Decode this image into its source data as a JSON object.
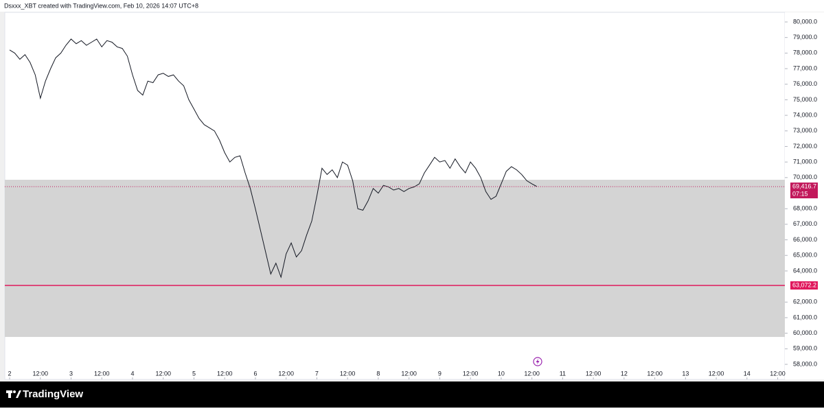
{
  "header": "Dsxxx_XBT created with TradingView.com, Feb 10, 2026 14:07 UTC+8",
  "footer": {
    "brand": "TradingView"
  },
  "chart_data": {
    "type": "line",
    "color": "#131722",
    "grid": false,
    "values": [
      78200,
      78000,
      77600,
      77900,
      77400,
      76600,
      75100,
      76200,
      77000,
      77700,
      78000,
      78500,
      78900,
      78600,
      78800,
      78500,
      78700,
      78900,
      78400,
      78800,
      78700,
      78400,
      78300,
      77800,
      76600,
      75600,
      75300,
      76200,
      76100,
      76600,
      76700,
      76500,
      76600,
      76200,
      75900,
      75000,
      74400,
      73800,
      73400,
      73200,
      73000,
      72400,
      71600,
      71000,
      71300,
      71400,
      70300,
      69300,
      68000,
      66600,
      65200,
      63800,
      64500,
      63600,
      65100,
      65800,
      64900,
      65300,
      66300,
      67200,
      68800,
      70600,
      70200,
      70500,
      70000,
      71000,
      70800,
      69800,
      68000,
      67900,
      68500,
      69300,
      69000,
      69500,
      69400,
      69200,
      69300,
      69100,
      69300,
      69400,
      69600,
      70300,
      70800,
      71300,
      71000,
      71100,
      70600,
      71200,
      70700,
      70300,
      71000,
      70600,
      70000,
      69100,
      68600,
      68800,
      69600,
      70400,
      70700,
      70500,
      70200,
      69800,
      69600,
      69416.7
    ],
    "xlim": [
      -0.94,
      151.4
    ],
    "xticks": [
      {
        "value": 0,
        "label": "2"
      },
      {
        "value": 6,
        "label": "12:00"
      },
      {
        "value": 12,
        "label": "3"
      },
      {
        "value": 18,
        "label": "12:00"
      },
      {
        "value": 24,
        "label": "4"
      },
      {
        "value": 30,
        "label": "12:00"
      },
      {
        "value": 36,
        "label": "5"
      },
      {
        "value": 42,
        "label": "12:00"
      },
      {
        "value": 48,
        "label": "6"
      },
      {
        "value": 54,
        "label": "12:00"
      },
      {
        "value": 60,
        "label": "7"
      },
      {
        "value": 66,
        "label": "12:00"
      },
      {
        "value": 72,
        "label": "8"
      },
      {
        "value": 78,
        "label": "12:00"
      },
      {
        "value": 84,
        "label": "9"
      },
      {
        "value": 90,
        "label": "12:00"
      },
      {
        "value": 96,
        "label": "10"
      },
      {
        "value": 102,
        "label": "12:00"
      },
      {
        "value": 108,
        "label": "11"
      },
      {
        "value": 114,
        "label": "12:00"
      },
      {
        "value": 120,
        "label": "12"
      },
      {
        "value": 126,
        "label": "12:00"
      },
      {
        "value": 132,
        "label": "13"
      },
      {
        "value": 138,
        "label": "12:00"
      },
      {
        "value": 144,
        "label": "14"
      },
      {
        "value": 150,
        "label": "12:00"
      }
    ],
    "ylim": [
      57030,
      80617
    ],
    "yticks": [
      {
        "value": 80000,
        "label": "80,000.0"
      },
      {
        "value": 79000,
        "label": "79,000.0"
      },
      {
        "value": 78000,
        "label": "78,000.0"
      },
      {
        "value": 77000,
        "label": "77,000.0"
      },
      {
        "value": 76000,
        "label": "76,000.0"
      },
      {
        "value": 75000,
        "label": "75,000.0"
      },
      {
        "value": 74000,
        "label": "74,000.0"
      },
      {
        "value": 73000,
        "label": "73,000.0"
      },
      {
        "value": 72000,
        "label": "72,000.0"
      },
      {
        "value": 71000,
        "label": "71,000.0"
      },
      {
        "value": 70000,
        "label": "70,000.0"
      },
      {
        "value": 68000,
        "label": "68,000.0"
      },
      {
        "value": 67000,
        "label": "67,000.0"
      },
      {
        "value": 66000,
        "label": "66,000.0"
      },
      {
        "value": 65000,
        "label": "65,000.0"
      },
      {
        "value": 64000,
        "label": "64,000.0"
      },
      {
        "value": 62000,
        "label": "62,000.0"
      },
      {
        "value": 61000,
        "label": "61,000.0"
      },
      {
        "value": 60000,
        "label": "60,000.0"
      },
      {
        "value": 59000,
        "label": "59,000.0"
      },
      {
        "value": 58000,
        "label": "58,000.0"
      }
    ],
    "zone": {
      "range": [
        59760,
        69860
      ],
      "color": "#d4d4d4"
    },
    "hlines": [
      {
        "value": 63072.2,
        "label": "63,072.2",
        "color": "#e0185d"
      }
    ],
    "last_price": {
      "value": 69416.7,
      "label": "69,416.7",
      "countdown": "07:15",
      "color": "#c2185b"
    }
  }
}
